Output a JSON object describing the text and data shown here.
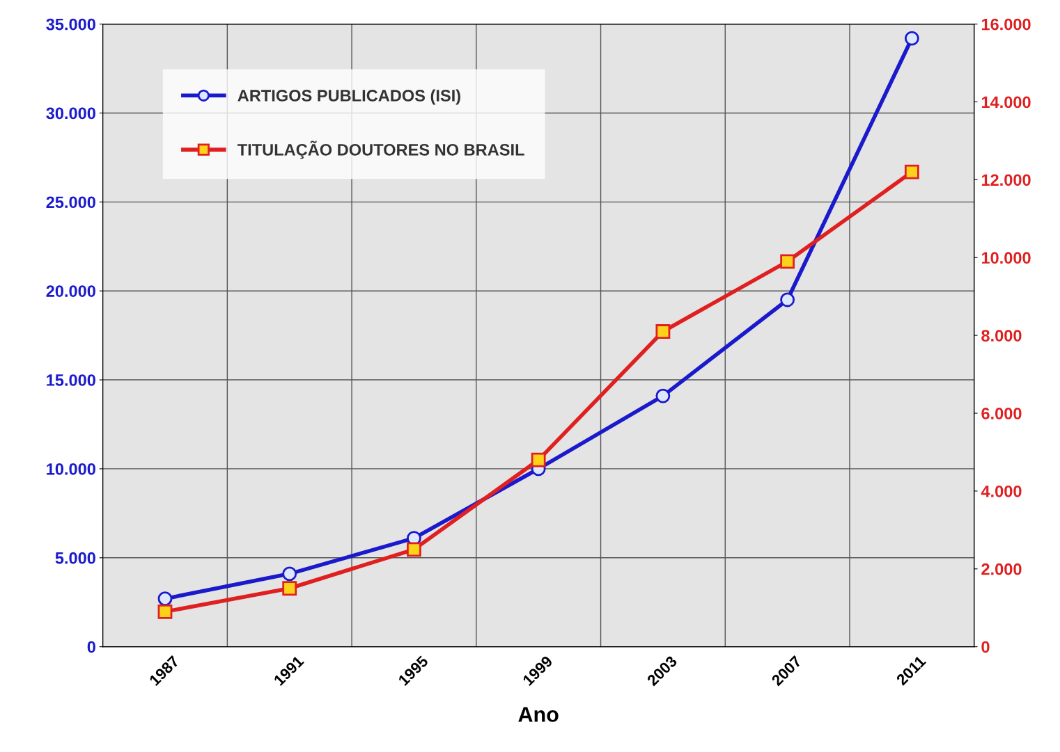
{
  "chart_data": {
    "type": "line",
    "xlabel": "Ano",
    "categories": [
      "1987",
      "1991",
      "1995",
      "1999",
      "2003",
      "2007",
      "2011"
    ],
    "series": [
      {
        "name": "ARTIGOS PUBLICADOS (ISI)",
        "color": "#1a1acc",
        "marker": "circle",
        "values": [
          2700,
          4100,
          6100,
          10000,
          14100,
          19500,
          34200
        ]
      },
      {
        "name": "TITULAÇÃO DOUTORES NO BRASIL",
        "color": "#e02020",
        "marker": "square",
        "axis": "y2",
        "values": [
          900,
          1500,
          2500,
          4800,
          8100,
          9900,
          12200
        ]
      }
    ],
    "ylim": [
      0,
      35000
    ],
    "yticks": [
      0,
      {
        "value": 5000,
        "label": "5.000"
      },
      {
        "value": 10000,
        "label": "10.000"
      },
      {
        "value": 15000,
        "label": "15.000"
      },
      {
        "value": 20000,
        "label": "20.000"
      },
      {
        "value": 25000,
        "label": "25.000"
      },
      {
        "value": 30000,
        "label": "30.000"
      },
      {
        "value": 35000,
        "label": "35.000"
      }
    ],
    "y2lim": [
      0,
      16000
    ],
    "y2ticks": [
      0,
      {
        "value": 2000,
        "label": "2.000"
      },
      {
        "value": 4000,
        "label": "4.000"
      },
      {
        "value": 6000,
        "label": "6.000"
      },
      {
        "value": 8000,
        "label": "8.000"
      },
      {
        "value": 10000,
        "label": "10.000"
      },
      {
        "value": 12000,
        "label": "12.000"
      },
      {
        "value": 14000,
        "label": "14.000"
      },
      {
        "value": 16000,
        "label": "16.000"
      }
    ],
    "grid": true,
    "legend": "top left",
    "line_style": "solid"
  }
}
